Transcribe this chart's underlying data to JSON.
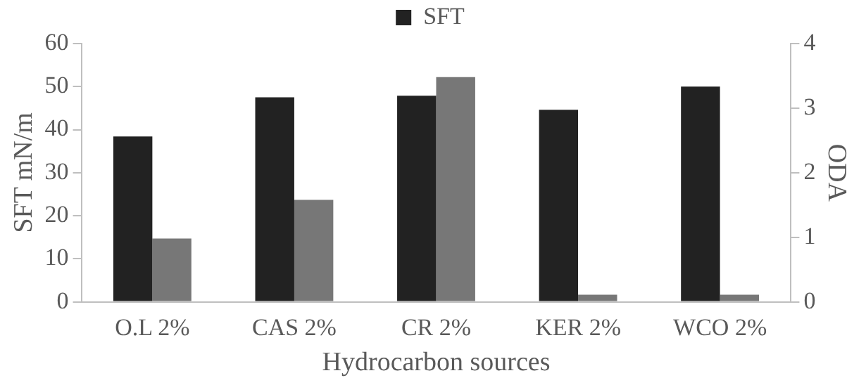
{
  "chart_data": {
    "type": "bar",
    "xlabel": "Hydrocarbon sources",
    "ylabel": "SFT mN/m",
    "y2label": "ODA",
    "categories": [
      "O.L 2%",
      "CAS 2%",
      "CR 2%",
      "KER 2%",
      "WCO 2%"
    ],
    "series": [
      {
        "name": "SFT",
        "color": "#222222",
        "values": [
          38.4,
          47.5,
          47.9,
          44.6,
          50
        ]
      },
      {
        "color": "#777777",
        "axis": "y2",
        "values": [
          0.98,
          1.58,
          3.48,
          0.11,
          0.11
        ]
      }
    ],
    "ylim": [
      0,
      60
    ],
    "yticks": [
      0,
      10,
      20,
      30,
      40,
      50,
      60
    ],
    "y2lim": [
      0,
      4
    ],
    "y2ticks": [
      0,
      1,
      2,
      3,
      4
    ],
    "grid": false,
    "legend": "top"
  }
}
